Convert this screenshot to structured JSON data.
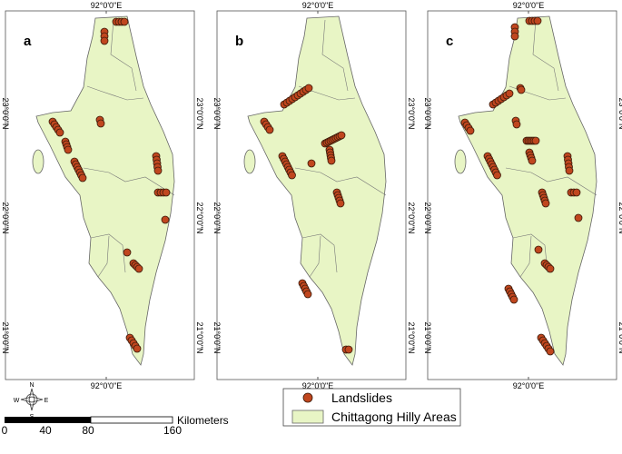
{
  "panels": [
    {
      "label": "a",
      "top_label": "92°0'0\"E",
      "bottom_label": "92°0'0\"E",
      "left_labels": [
        "23°0'0\"N",
        "22°0'0\"N",
        "21°0'0\"N"
      ],
      "right_labels": [
        "23°0'0\"N",
        "22°0'0\"N",
        "21°0'0\"N"
      ]
    },
    {
      "label": "b",
      "top_label": "92°0'0\"E",
      "bottom_label": "92°0'0\"E",
      "left_labels": [
        "23°0'0\"N",
        "22°0'0\"N",
        "21°0'0\"N"
      ],
      "right_labels": [
        "23°0'0\"N",
        "22°0'0\"N",
        "21°0'0\"N"
      ]
    },
    {
      "label": "c",
      "top_label": "92°0'0\"E",
      "bottom_label": "92°0'0\"E",
      "left_labels": [
        "23°0'0\"N",
        "22°0'0\"N",
        "21°0'0\"N"
      ],
      "right_labels": [
        "23°0'0\"N",
        "22°0'0\"N",
        "21°0'0\"N"
      ]
    }
  ],
  "legend": {
    "items": [
      "Landslides",
      "Chittagong Hilly Areas"
    ]
  },
  "compass": {
    "north": "N",
    "south": "S",
    "east": "E",
    "west": "W"
  },
  "scale_bar": {
    "labels": [
      "0",
      "40",
      "80",
      "160"
    ],
    "unit": "Kilometers"
  }
}
